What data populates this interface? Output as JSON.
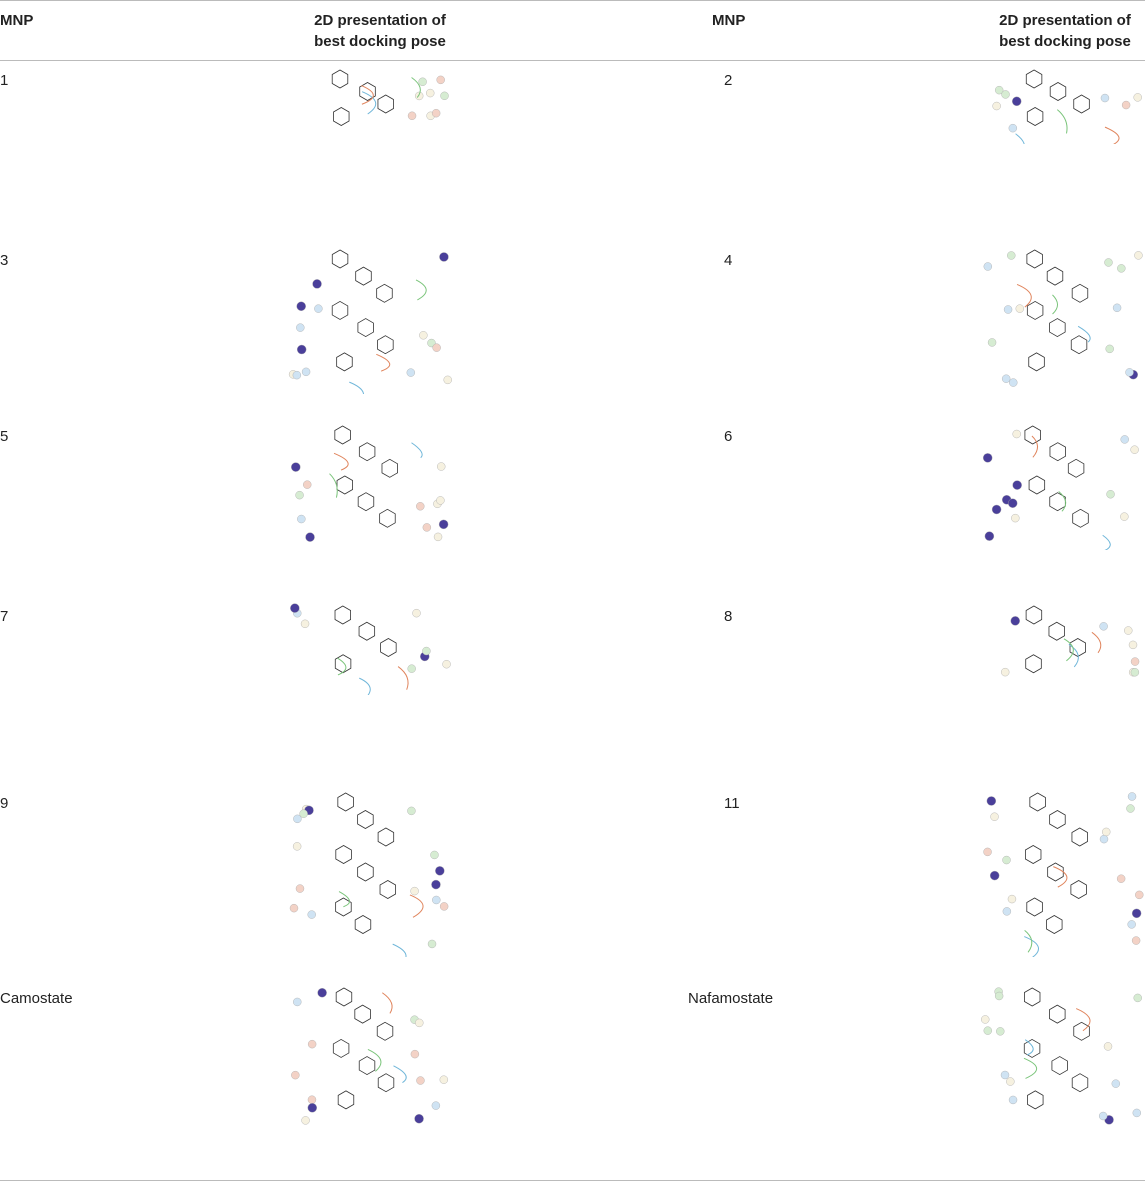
{
  "table": {
    "header": [
      "MNP",
      "2D presentation of best docking pose",
      "MNP",
      "2D presentation of best docking pose"
    ],
    "rows": [
      [
        "1",
        "2"
      ],
      [
        "3",
        "4"
      ],
      [
        "5",
        "6"
      ],
      [
        "7",
        "8"
      ],
      [
        "9",
        "11"
      ],
      [
        "Camostate",
        "Nafamostate"
      ]
    ]
  }
}
